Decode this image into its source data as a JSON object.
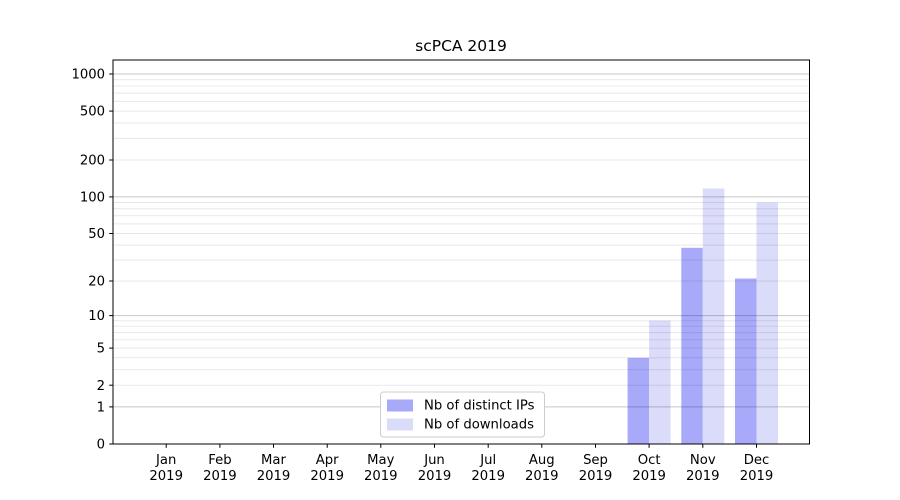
{
  "title": "scPCA 2019",
  "year": "2019",
  "months": [
    "Jan",
    "Feb",
    "Mar",
    "Apr",
    "May",
    "Jun",
    "Jul",
    "Aug",
    "Sep",
    "Oct",
    "Nov",
    "Dec"
  ],
  "y_tick_labels": [
    "0",
    "1",
    "2",
    "5",
    "10",
    "20",
    "50",
    "100",
    "200",
    "500",
    "1000"
  ],
  "legend": {
    "items": [
      {
        "label": "Nb of distinct IPs",
        "color": "#a9a9fa"
      },
      {
        "label": "Nb of downloads",
        "color": "#dbdbfa"
      }
    ]
  },
  "colors": {
    "distinct_ips": "#a9a9fa",
    "downloads": "#dbdbfa",
    "grid_major": "rgba(0,0,0,0.22)",
    "grid_minor": "rgba(0,0,0,0.09)",
    "axis": "#000000",
    "legend_border": "#cccccc",
    "legend_background": "#ffffff",
    "background": "#ffffff",
    "text": "#000000"
  },
  "chart_data": {
    "type": "bar",
    "title": "scPCA 2019",
    "categories": [
      "Jan 2019",
      "Feb 2019",
      "Mar 2019",
      "Apr 2019",
      "May 2019",
      "Jun 2019",
      "Jul 2019",
      "Aug 2019",
      "Sep 2019",
      "Oct 2019",
      "Nov 2019",
      "Dec 2019"
    ],
    "series": [
      {
        "name": "Nb of distinct IPs",
        "color": "#a9a9fa",
        "values": [
          0,
          0,
          0,
          0,
          0,
          0,
          0,
          0,
          0,
          4,
          38,
          21
        ]
      },
      {
        "name": "Nb of downloads",
        "color": "#dbdbfa",
        "values": [
          0,
          0,
          0,
          0,
          0,
          0,
          0,
          0,
          0,
          9,
          117,
          90
        ]
      }
    ],
    "yscale": "log1p",
    "yticks": [
      0,
      1,
      2,
      5,
      10,
      20,
      50,
      100,
      200,
      500,
      1000
    ],
    "ylim": [
      0,
      1300
    ],
    "grid": true,
    "grid_above_bars": true,
    "legend_position": "lower center",
    "xlabel": "",
    "ylabel": ""
  }
}
